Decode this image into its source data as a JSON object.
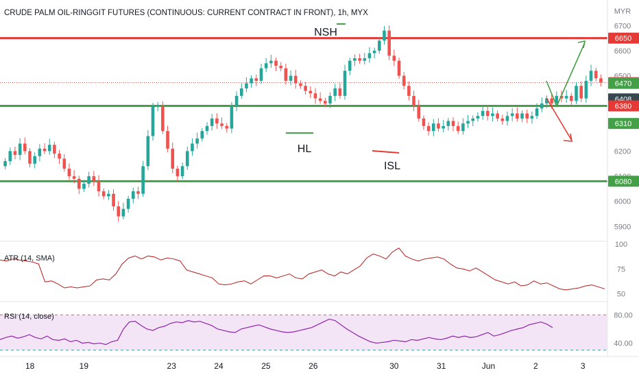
{
  "header": {
    "title": "CRUDE PALM OIL-RINGGIT FUTURES (CONTINUOUS: CURRENT CONTRACT IN FRONT), 1h, MYX",
    "currency": "MYR"
  },
  "colors": {
    "up": "#26a69a",
    "down": "#ef5350",
    "support": "#43a047",
    "resistance": "#e53935",
    "atr_line": "#b71c1c",
    "rsi_line": "#8e24aa",
    "rsi_band": "#f3e5f5"
  },
  "annotations": {
    "nsh": "NSH",
    "hl": "HL",
    "isl": "ISL"
  },
  "chart_data": [
    {
      "type": "candlestick",
      "name": "price",
      "ylim": [
        5860,
        6720
      ],
      "y_ticks": [
        5900,
        6000,
        6100,
        6200,
        6300,
        6400,
        6500,
        6600,
        6700
      ],
      "x_tick_labels": [
        "18",
        "19",
        "23",
        "24",
        "25",
        "26",
        "30",
        "31",
        "Jun",
        "2",
        "3"
      ],
      "x_tick_positions": [
        4,
        20,
        46,
        60,
        74,
        88,
        112,
        126,
        140,
        154,
        168
      ],
      "horizontal_levels": [
        {
          "value": 6650,
          "label": "6650",
          "role": "resistance"
        },
        {
          "value": 6380,
          "label": "6380",
          "role": "support"
        },
        {
          "value": 6080,
          "label": "6080",
          "role": "support"
        }
      ],
      "price_labels": [
        {
          "value": 6650,
          "label": "6650",
          "color": "#e53935"
        },
        {
          "value": 6473,
          "label": "6473",
          "color": "#ef5350"
        },
        {
          "value": 6470,
          "label": "6470",
          "color": "#43a047"
        },
        {
          "value": 6408,
          "label": "6408",
          "color": "#37474f"
        },
        {
          "value": 6380,
          "label": "6380",
          "color": "#e53935"
        },
        {
          "value": 6310,
          "label": "6310",
          "color": "#43a047"
        },
        {
          "value": 6080,
          "label": "6080",
          "color": "#43a047"
        }
      ],
      "current_price": 6473,
      "closes": [
        6160,
        6200,
        6185,
        6230,
        6200,
        6150,
        6180,
        6210,
        6200,
        6225,
        6190,
        6170,
        6130,
        6100,
        6090,
        6050,
        6070,
        6100,
        6080,
        6040,
        6020,
        6030,
        5980,
        5940,
        5970,
        6010,
        6040,
        6030,
        6140,
        6260,
        6380,
        6380,
        6280,
        6210,
        6130,
        6100,
        6140,
        6200,
        6230,
        6250,
        6280,
        6300,
        6330,
        6310,
        6300,
        6290,
        6380,
        6420,
        6450,
        6470,
        6490,
        6480,
        6530,
        6550,
        6560,
        6540,
        6530,
        6480,
        6500,
        6470,
        6460,
        6440,
        6430,
        6410,
        6400,
        6390,
        6420,
        6450,
        6420,
        6520,
        6560,
        6570,
        6560,
        6570,
        6590,
        6600,
        6640,
        6680,
        6580,
        6560,
        6500,
        6460,
        6420,
        6380,
        6330,
        6300,
        6280,
        6310,
        6290,
        6300,
        6320,
        6300,
        6280,
        6310,
        6320,
        6330,
        6340,
        6360,
        6340,
        6350,
        6330,
        6320,
        6340,
        6350,
        6330,
        6350,
        6330,
        6340,
        6370,
        6390,
        6410,
        6390,
        6420,
        6410,
        6420,
        6400,
        6460,
        6410,
        6480,
        6520,
        6490,
        6473
      ],
      "opens_delta_note": "",
      "x_count": 122
    },
    {
      "type": "line",
      "name": "ATR (14, SMA)",
      "ylim": [
        45,
        100
      ],
      "y_ticks": [
        50,
        75,
        100
      ],
      "values": [
        84,
        83,
        85,
        84,
        83,
        82,
        80,
        62,
        63,
        60,
        56,
        57,
        56,
        57,
        58,
        64,
        65,
        64,
        70,
        80,
        86,
        88,
        85,
        88,
        87,
        84,
        86,
        85,
        83,
        74,
        72,
        70,
        68,
        66,
        60,
        59,
        60,
        62,
        63,
        60,
        64,
        68,
        68,
        66,
        68,
        70,
        66,
        65,
        70,
        72,
        74,
        70,
        68,
        72,
        70,
        74,
        78,
        86,
        90,
        88,
        85,
        92,
        96,
        88,
        85,
        83,
        85,
        86,
        87,
        85,
        80,
        76,
        75,
        73,
        76,
        72,
        68,
        64,
        62,
        60,
        62,
        58,
        59,
        63,
        60,
        61,
        58,
        55,
        54,
        55,
        56,
        58,
        59,
        57,
        55
      ],
      "label": "ATR (14, SMA)"
    },
    {
      "type": "line",
      "name": "RSI (14, close)",
      "ylim": [
        25,
        95
      ],
      "y_ticks": [
        40,
        80
      ],
      "band": [
        30,
        80
      ],
      "values": [
        45,
        48,
        50,
        47,
        49,
        52,
        48,
        46,
        50,
        45,
        44,
        46,
        42,
        44,
        40,
        41,
        39,
        40,
        38,
        42,
        44,
        60,
        70,
        71,
        65,
        60,
        58,
        62,
        64,
        68,
        70,
        69,
        72,
        70,
        71,
        68,
        65,
        60,
        58,
        56,
        55,
        60,
        62,
        64,
        66,
        63,
        60,
        58,
        56,
        55,
        56,
        58,
        60,
        62,
        66,
        70,
        74,
        72,
        66,
        60,
        55,
        50,
        46,
        42,
        40,
        41,
        42,
        44,
        43,
        42,
        45,
        44,
        46,
        48,
        46,
        45,
        47,
        50,
        48,
        50,
        48,
        49,
        52,
        55,
        50,
        52,
        55,
        58,
        60,
        62,
        66,
        68,
        70,
        67,
        62
      ],
      "label": "RSI (14, close)"
    }
  ]
}
